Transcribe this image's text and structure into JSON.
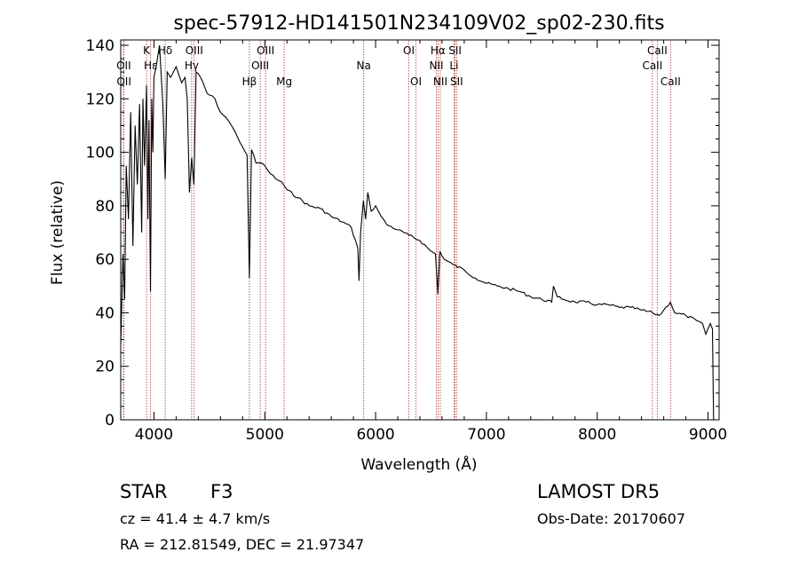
{
  "chart_data": {
    "type": "line",
    "title": "spec-57912-HD141501N234109V02_sp02-230.fits",
    "xlabel": "Wavelength (Å)",
    "ylabel": "Flux (relative)",
    "xlim": [
      3700,
      9100
    ],
    "ylim": [
      0,
      142
    ],
    "x_ticks": [
      4000,
      5000,
      6000,
      7000,
      8000,
      9000
    ],
    "y_ticks": [
      0,
      20,
      40,
      60,
      80,
      100,
      120,
      140
    ],
    "grid": false,
    "line_color": "#000000",
    "marker_color": "#b03030",
    "series": [
      {
        "x": [
          3700,
          3720,
          3735,
          3750,
          3770,
          3790,
          3810,
          3830,
          3850,
          3870,
          3889,
          3900,
          3915,
          3933,
          3945,
          3955,
          3968,
          3980,
          3990,
          4000,
          4020,
          4050,
          4080,
          4101,
          4120,
          4150,
          4200,
          4250,
          4280,
          4300,
          4320,
          4340,
          4360,
          4380,
          4420,
          4480,
          4550,
          4600,
          4650,
          4700,
          4750,
          4800,
          4840,
          4861,
          4880,
          4920,
          4960,
          5000,
          5050,
          5100,
          5150,
          5200,
          5300,
          5400,
          5500,
          5600,
          5700,
          5780,
          5840,
          5850,
          5865,
          5890,
          5910,
          5930,
          5960,
          6000,
          6050,
          6100,
          6200,
          6300,
          6400,
          6500,
          6540,
          6563,
          6580,
          6620,
          6700,
          6800,
          6900,
          7000,
          7100,
          7200,
          7300,
          7400,
          7500,
          7590,
          7605,
          7640,
          7700,
          7800,
          7900,
          8000,
          8100,
          8200,
          8300,
          8400,
          8500,
          8560,
          8600,
          8660,
          8700,
          8800,
          8900,
          8950,
          8980,
          9000,
          9020,
          9040,
          9050
        ],
        "y": [
          28,
          62,
          45,
          95,
          75,
          115,
          65,
          110,
          88,
          118,
          70,
          120,
          95,
          125,
          75,
          112,
          48,
          120,
          100,
          128,
          132,
          140,
          118,
          90,
          130,
          128,
          132,
          126,
          128,
          120,
          85,
          98,
          88,
          130,
          128,
          122,
          120,
          115,
          113,
          110,
          106,
          102,
          99,
          53,
          101,
          96,
          96,
          95,
          92,
          90,
          89,
          86,
          83,
          80,
          79,
          76,
          74,
          72,
          64,
          52,
          70,
          82,
          75,
          85,
          78,
          80,
          76,
          73,
          71,
          69,
          67,
          63,
          62,
          47,
          63,
          60,
          58,
          56,
          53,
          51,
          50,
          49,
          48,
          46,
          45,
          44,
          50,
          46,
          45,
          44,
          44,
          43,
          43,
          42,
          42,
          41,
          40,
          39,
          41,
          44,
          40,
          39,
          37,
          36,
          32,
          34,
          36,
          34,
          0
        ]
      }
    ],
    "lines": [
      {
        "name": "Hδ",
        "x": 4101,
        "row": 0
      },
      {
        "name": "K",
        "x": 3933,
        "row": 0
      },
      {
        "name": "Hε",
        "x": 3970,
        "row": 1
      },
      {
        "name": "OII",
        "x": 3727,
        "row": 1
      },
      {
        "name": "OII",
        "x": 3729,
        "row": 2
      },
      {
        "name": "Hγ",
        "x": 4340,
        "row": 1
      },
      {
        "name": "OIII",
        "x": 4363,
        "row": 0
      },
      {
        "name": "Hβ",
        "x": 4861,
        "row": 2
      },
      {
        "name": "OIII",
        "x": 4959,
        "row": 1
      },
      {
        "name": "OIII",
        "x": 5007,
        "row": 0
      },
      {
        "name": "Mg",
        "x": 5175,
        "row": 2
      },
      {
        "name": "Na",
        "x": 5893,
        "row": 1
      },
      {
        "name": "OI",
        "x": 6300,
        "row": 0
      },
      {
        "name": "OI",
        "x": 6364,
        "row": 2
      },
      {
        "name": "NII",
        "x": 6548,
        "row": 1
      },
      {
        "name": "Hα",
        "x": 6563,
        "row": 0
      },
      {
        "name": "NII",
        "x": 6584,
        "row": 2
      },
      {
        "name": "SII",
        "x": 6717,
        "row": 0
      },
      {
        "name": "Li",
        "x": 6708,
        "row": 1
      },
      {
        "name": "SII",
        "x": 6731,
        "row": 2
      },
      {
        "name": "CaII",
        "x": 8498,
        "row": 1
      },
      {
        "name": "CaII",
        "x": 8542,
        "row": 0
      },
      {
        "name": "CaII",
        "x": 8662,
        "row": 2
      }
    ]
  },
  "footer": {
    "class": "STAR",
    "subclass": "F3",
    "survey": "LAMOST DR5",
    "cz": "cz = 41.4 ± 4.7 km/s",
    "obs_date": "Obs-Date: 20170607",
    "radec": "RA = 212.81549, DEC =  21.97347"
  }
}
